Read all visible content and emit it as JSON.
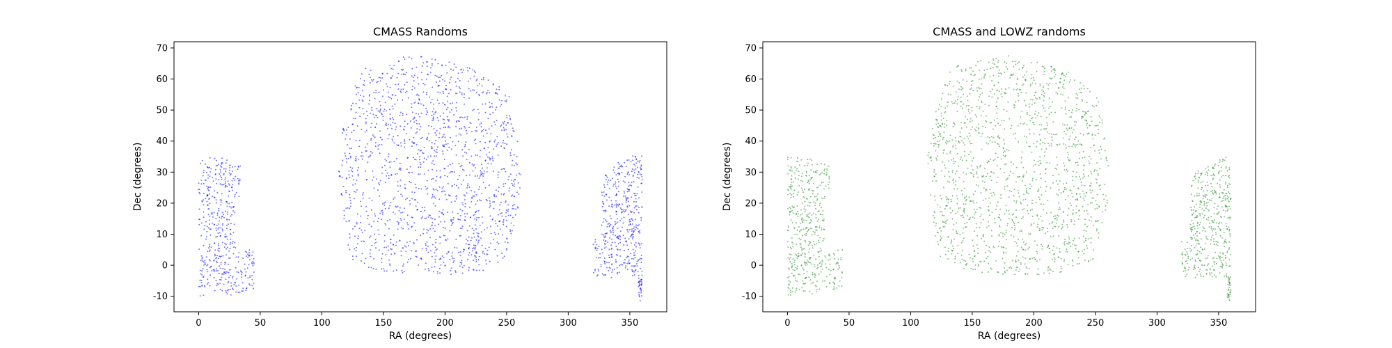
{
  "chart_data": [
    {
      "type": "scatter",
      "title": "CMASS Randoms",
      "xlabel": "RA (degrees)",
      "ylabel": "Dec (degrees)",
      "xlim": [
        -20,
        380
      ],
      "ylim": [
        -15,
        72
      ],
      "xticks": [
        0,
        50,
        100,
        150,
        200,
        250,
        300,
        350
      ],
      "yticks": [
        -10,
        0,
        10,
        20,
        30,
        40,
        50,
        60,
        70
      ],
      "color": "#0000ff",
      "point_alpha": 0.55,
      "grid": false,
      "legend": "none",
      "series": [
        {
          "regions": [
            {
              "kind": "polygon",
              "weight": 0.58,
              "points": [
                [
                  115,
                  41
                ],
                [
                  122,
                  52
                ],
                [
                  132,
                  64
                ],
                [
                  150,
                  65
                ],
                [
                  170,
                  68
                ],
                [
                  190,
                  67
                ],
                [
                  210,
                  65
                ],
                [
                  230,
                  62
                ],
                [
                  245,
                  58
                ],
                [
                  252,
                  55
                ],
                [
                  257,
                  44
                ],
                [
                  262,
                  33
                ],
                [
                  261,
                  22
                ],
                [
                  258,
                  15
                ],
                [
                  253,
                  8
                ],
                [
                  248,
                  2
                ],
                [
                  232,
                  -2
                ],
                [
                  205,
                  -3
                ],
                [
                  175,
                  -3
                ],
                [
                  150,
                  -2
                ],
                [
                  128,
                  0
                ],
                [
                  122,
                  4
                ],
                [
                  118,
                  15
                ],
                [
                  115,
                  25
                ],
                [
                  113,
                  33
                ]
              ]
            },
            {
              "kind": "polygon",
              "weight": 0.18,
              "points": [
                [
                  0,
                  35
                ],
                [
                  20,
                  34.5
                ],
                [
                  34,
                  32
                ],
                [
                  34,
                  23
                ],
                [
                  30,
                  20
                ],
                [
                  30,
                  5
                ],
                [
                  45,
                  5
                ],
                [
                  45,
                  -8
                ],
                [
                  30,
                  -9
                ],
                [
                  25,
                  -10
                ],
                [
                  10,
                  -8
                ],
                [
                  0,
                  -11
                ]
              ]
            },
            {
              "kind": "polygon",
              "weight": 0.17,
              "points": [
                [
                  320,
                  8
                ],
                [
                  327,
                  9
                ],
                [
                  327,
                  25
                ],
                [
                  330,
                  30
                ],
                [
                  340,
                  33
                ],
                [
                  350,
                  35
                ],
                [
                  360,
                  36
                ],
                [
                  360,
                  -4
                ],
                [
                  320,
                  -4
                ]
              ]
            },
            {
              "kind": "polygon",
              "weight": 0.012,
              "points": [
                [
                  357,
                  -4
                ],
                [
                  360,
                  -4
                ],
                [
                  360,
                  -12
                ],
                [
                  357,
                  -12
                ]
              ]
            }
          ]
        }
      ]
    },
    {
      "type": "scatter",
      "title": "CMASS and LOWZ randoms",
      "xlabel": "RA (degrees)",
      "ylabel": "Dec (degrees)",
      "xlim": [
        -20,
        380
      ],
      "ylim": [
        -15,
        72
      ],
      "xticks": [
        0,
        50,
        100,
        150,
        200,
        250,
        300,
        350
      ],
      "yticks": [
        -10,
        0,
        10,
        20,
        30,
        40,
        50,
        60,
        70
      ],
      "color": "#228b22",
      "point_alpha": 0.55,
      "grid": false,
      "legend": "none",
      "series": [
        {
          "regions": [
            {
              "kind": "polygon",
              "weight": 0.58,
              "points": [
                [
                  115,
                  41
                ],
                [
                  122,
                  52
                ],
                [
                  132,
                  64
                ],
                [
                  150,
                  65
                ],
                [
                  170,
                  68
                ],
                [
                  190,
                  67
                ],
                [
                  210,
                  65
                ],
                [
                  230,
                  62
                ],
                [
                  245,
                  58
                ],
                [
                  252,
                  55
                ],
                [
                  257,
                  44
                ],
                [
                  262,
                  33
                ],
                [
                  261,
                  22
                ],
                [
                  258,
                  15
                ],
                [
                  253,
                  8
                ],
                [
                  248,
                  2
                ],
                [
                  232,
                  -2
                ],
                [
                  205,
                  -3
                ],
                [
                  175,
                  -3
                ],
                [
                  150,
                  -2
                ],
                [
                  128,
                  0
                ],
                [
                  122,
                  4
                ],
                [
                  118,
                  15
                ],
                [
                  115,
                  25
                ],
                [
                  113,
                  33
                ]
              ]
            },
            {
              "kind": "polygon",
              "weight": 0.18,
              "points": [
                [
                  0,
                  35
                ],
                [
                  20,
                  34.5
                ],
                [
                  34,
                  32
                ],
                [
                  34,
                  23
                ],
                [
                  30,
                  20
                ],
                [
                  30,
                  5
                ],
                [
                  45,
                  5
                ],
                [
                  45,
                  -8
                ],
                [
                  30,
                  -9
                ],
                [
                  25,
                  -10
                ],
                [
                  10,
                  -8
                ],
                [
                  0,
                  -11
                ]
              ]
            },
            {
              "kind": "polygon",
              "weight": 0.17,
              "points": [
                [
                  320,
                  8
                ],
                [
                  327,
                  9
                ],
                [
                  327,
                  25
                ],
                [
                  330,
                  30
                ],
                [
                  340,
                  33
                ],
                [
                  350,
                  35
                ],
                [
                  360,
                  36
                ],
                [
                  360,
                  -4
                ],
                [
                  320,
                  -4
                ]
              ]
            },
            {
              "kind": "polygon",
              "weight": 0.012,
              "points": [
                [
                  357,
                  -4
                ],
                [
                  360,
                  -4
                ],
                [
                  360,
                  -12
                ],
                [
                  357,
                  -12
                ]
              ]
            }
          ]
        }
      ]
    }
  ]
}
